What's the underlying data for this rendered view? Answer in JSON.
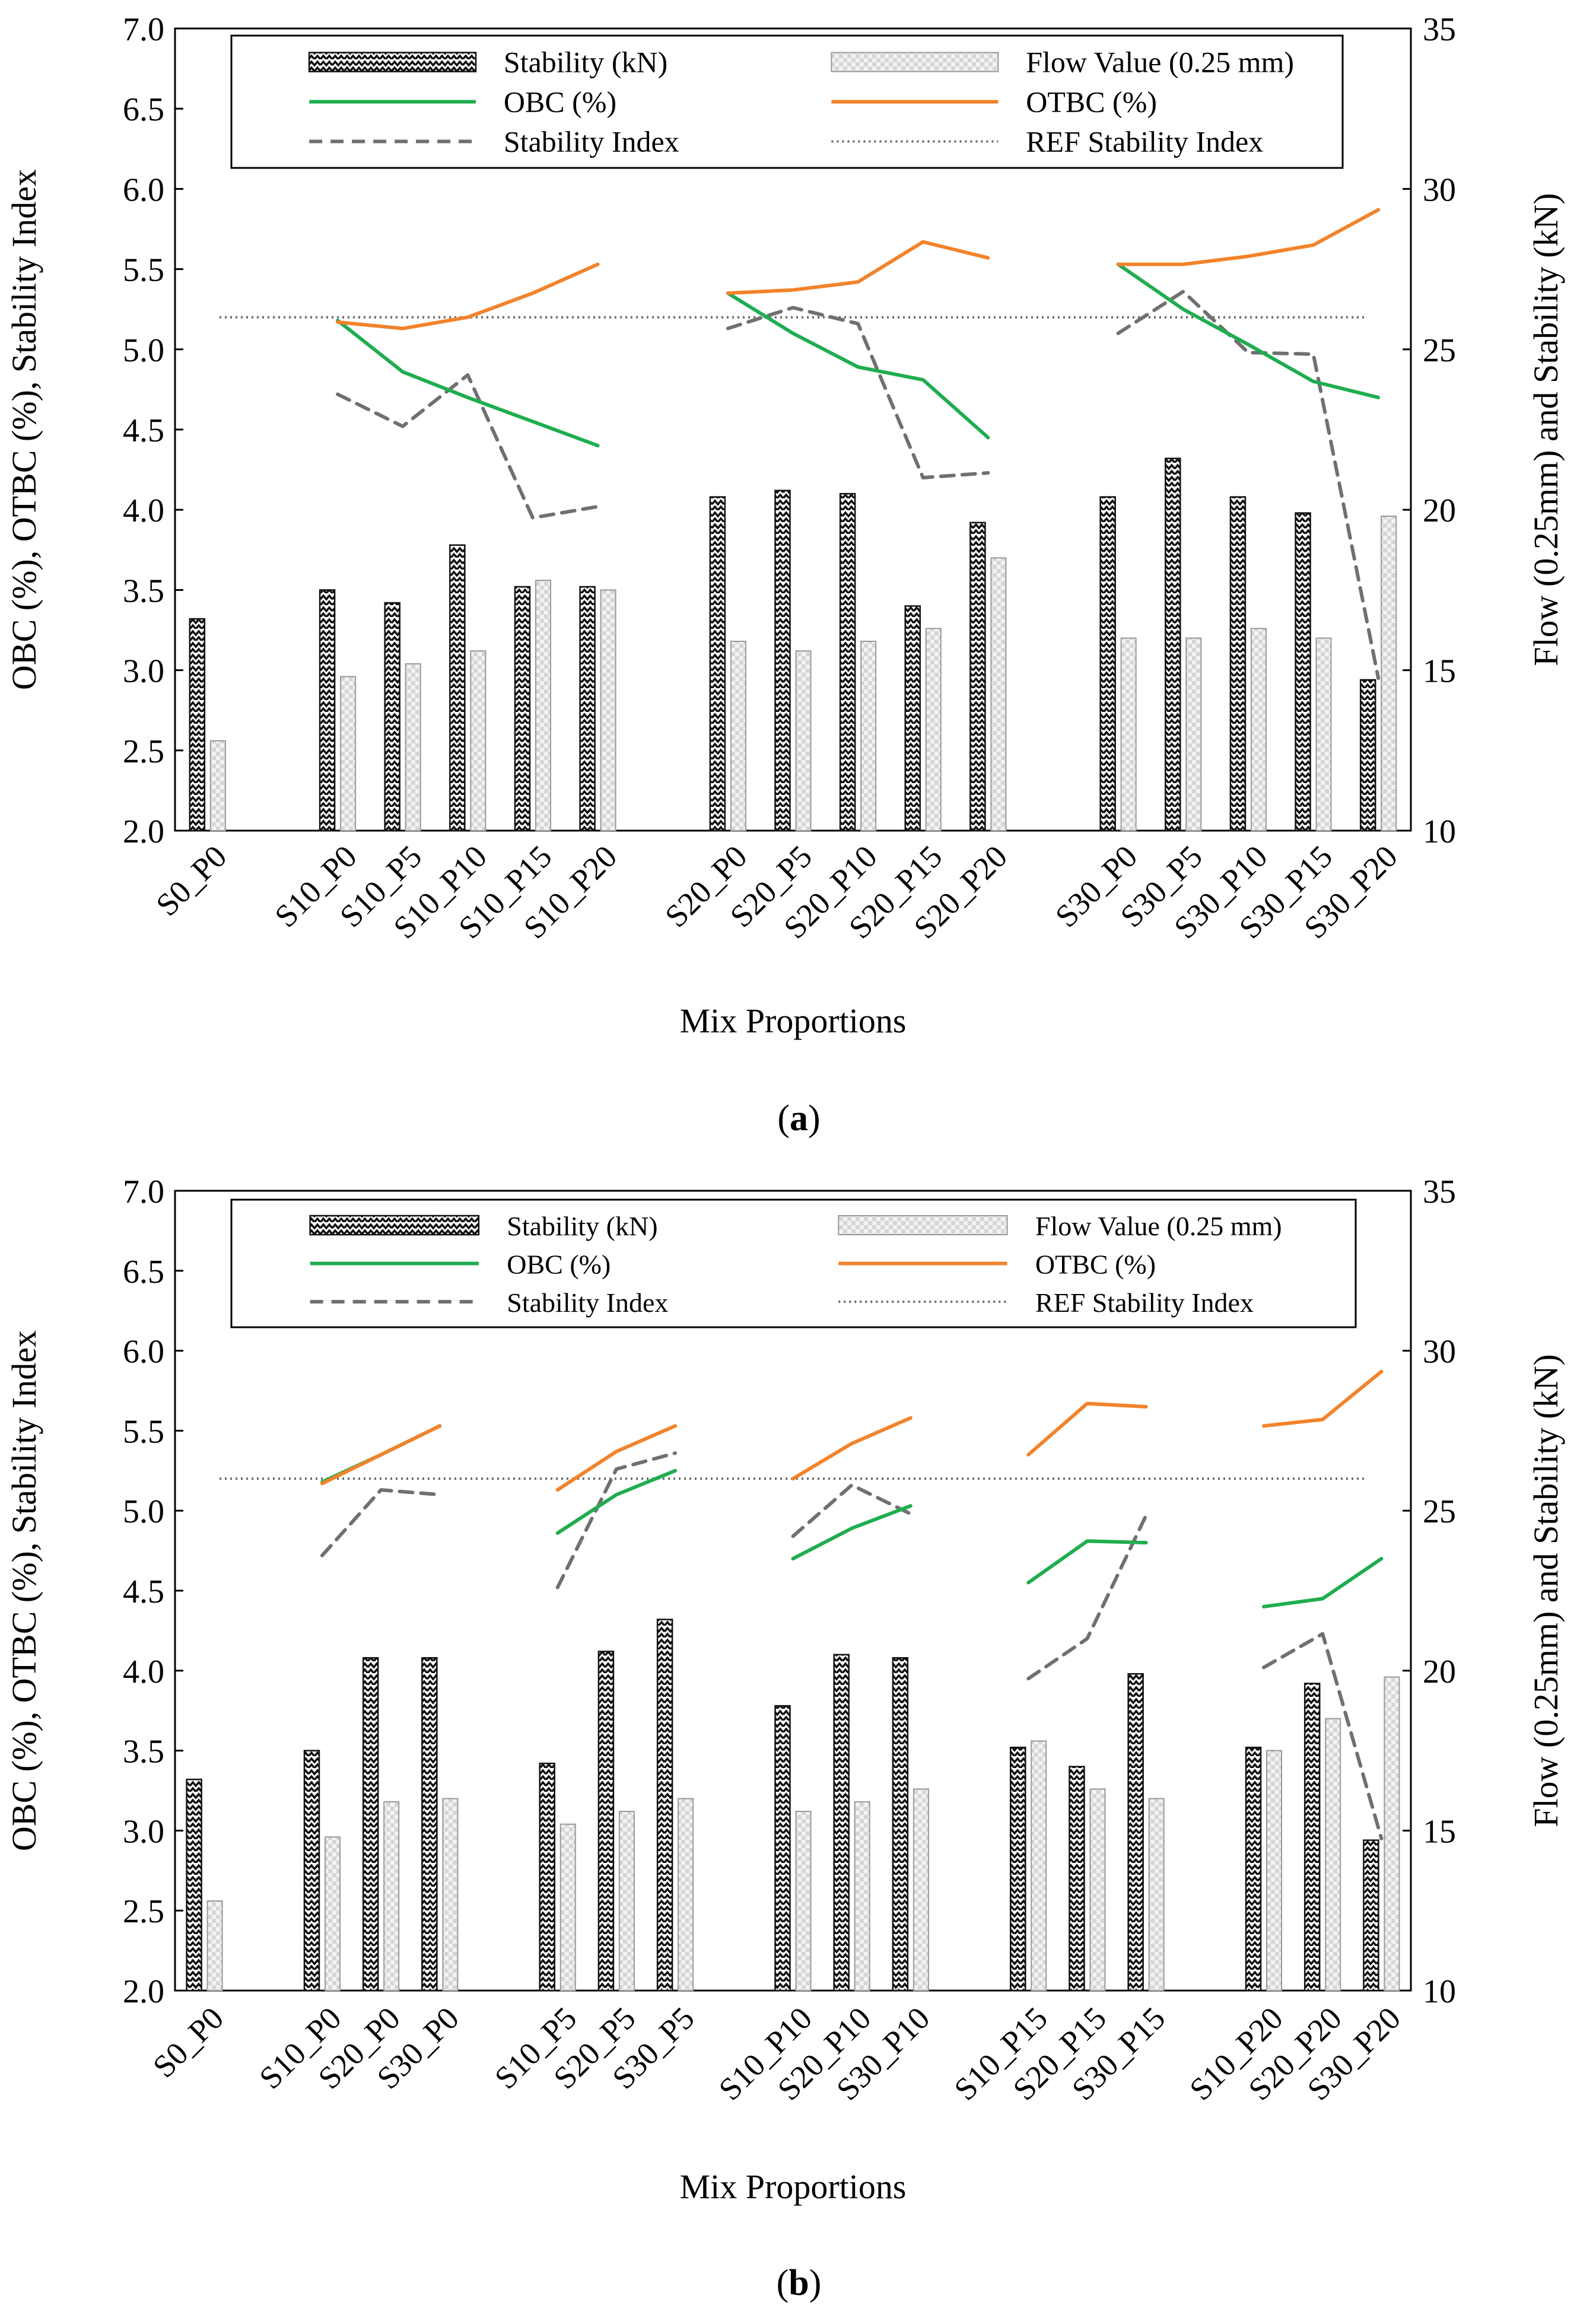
{
  "colors": {
    "obc": "#1fad4f",
    "otbc": "#f2832b",
    "stability_index": "#707070",
    "ref": "#6a6a6a",
    "stability_bar": "#1a1a1a",
    "flow_bar": "#c9c9c9"
  },
  "chart_data": [
    {
      "type": "bar",
      "panel": "(a)",
      "caption_letter": "a",
      "xlabel": "Mix Proportions",
      "ylabel_left": "OBC (%), OTBC (%), Stability Index",
      "ylabel_right": "Flow (0.25mm) and Stability (kN)",
      "ylim_left": [
        2.0,
        7.0
      ],
      "ylim_right": [
        10,
        35
      ],
      "left_ticks": [
        "2.0",
        "2.5",
        "3.0",
        "3.5",
        "4.0",
        "4.5",
        "5.0",
        "5.5",
        "6.0",
        "6.5",
        "7.0"
      ],
      "right_ticks": [
        "10",
        "15",
        "20",
        "25",
        "30",
        "35"
      ],
      "legend": {
        "stability": "Stability (kN)",
        "flow": "Flow Value (0.25 mm)",
        "obc": "OBC (%)",
        "otbc": "OTBC (%)",
        "si": "Stability Index",
        "ref": "REF Stability Index"
      },
      "ref_stability_index": 5.2,
      "categories": [
        "S0_P0",
        "S10_P0",
        "S10_P5",
        "S10_P10",
        "S10_P15",
        "S10_P20",
        "S20_P0",
        "S20_P5",
        "S20_P10",
        "S20_P15",
        "S20_P20",
        "S30_P0",
        "S30_P5",
        "S30_P10",
        "S30_P15",
        "S30_P20"
      ],
      "groups": [
        [
          0
        ],
        [
          1,
          2,
          3,
          4,
          5
        ],
        [
          6,
          7,
          8,
          9,
          10
        ],
        [
          11,
          12,
          13,
          14,
          15
        ]
      ],
      "stability": [
        16.6,
        17.5,
        17.1,
        18.9,
        17.6,
        17.6,
        20.4,
        20.6,
        20.5,
        17.0,
        19.6,
        20.4,
        21.6,
        20.4,
        19.9,
        14.7
      ],
      "flow": [
        12.8,
        14.8,
        15.2,
        15.6,
        17.8,
        17.5,
        15.9,
        15.6,
        15.9,
        16.3,
        18.5,
        16.0,
        16.0,
        16.3,
        16.0,
        19.8
      ],
      "obc": [
        null,
        5.18,
        4.86,
        4.7,
        4.55,
        4.4,
        5.35,
        5.1,
        4.89,
        4.81,
        4.45,
        5.53,
        5.25,
        5.03,
        4.8,
        4.7
      ],
      "otbc": [
        null,
        5.17,
        5.13,
        5.2,
        5.35,
        5.53,
        5.35,
        5.37,
        5.42,
        5.67,
        5.57,
        5.53,
        5.53,
        5.58,
        5.65,
        5.87
      ],
      "stability_index": [
        null,
        4.72,
        4.52,
        4.84,
        3.95,
        4.02,
        5.13,
        5.26,
        5.16,
        4.2,
        4.23,
        5.1,
        5.36,
        4.98,
        4.97,
        2.95
      ]
    },
    {
      "type": "bar",
      "panel": "(b)",
      "caption_letter": "b",
      "xlabel": "Mix Proportions",
      "ylabel_left": "OBC (%), OTBC (%), Stability Index",
      "ylabel_right": "Flow (0.25mm) and Stability (kN)",
      "ylim_left": [
        2.0,
        7.0
      ],
      "ylim_right": [
        10,
        35
      ],
      "left_ticks": [
        "2.0",
        "2.5",
        "3.0",
        "3.5",
        "4.0",
        "4.5",
        "5.0",
        "5.5",
        "6.0",
        "6.5",
        "7.0"
      ],
      "right_ticks": [
        "10",
        "15",
        "20",
        "25",
        "30",
        "35"
      ],
      "legend": {
        "stability": "Stability (kN)",
        "flow": "Flow Value (0.25 mm)",
        "obc": "OBC (%)",
        "otbc": "OTBC (%)",
        "si": "Stability Index",
        "ref": "REF Stability Index"
      },
      "ref_stability_index": 5.2,
      "categories": [
        "S0_P0",
        "S10_P0",
        "S20_P0",
        "S30_P0",
        "S10_P5",
        "S20_P5",
        "S30_P5",
        "S10_P10",
        "S20_P10",
        "S30_P10",
        "S10_P15",
        "S20_P15",
        "S30_P15",
        "S10_P20",
        "S20_P20",
        "S30_P20"
      ],
      "groups": [
        [
          0
        ],
        [
          1,
          2,
          3
        ],
        [
          4,
          5,
          6
        ],
        [
          7,
          8,
          9
        ],
        [
          10,
          11,
          12
        ],
        [
          13,
          14,
          15
        ]
      ],
      "stability": [
        16.6,
        17.5,
        20.4,
        20.4,
        17.1,
        20.6,
        21.6,
        18.9,
        20.5,
        20.4,
        17.6,
        17.0,
        19.9,
        17.6,
        19.6,
        14.7
      ],
      "flow": [
        12.8,
        14.8,
        15.9,
        16.0,
        15.2,
        15.6,
        16.0,
        15.6,
        15.9,
        16.3,
        17.8,
        16.3,
        16.0,
        17.5,
        18.5,
        19.8
      ],
      "obc": [
        null,
        5.18,
        5.35,
        5.53,
        4.86,
        5.1,
        5.25,
        4.7,
        4.89,
        5.03,
        4.55,
        4.81,
        4.8,
        4.4,
        4.45,
        4.7
      ],
      "otbc": [
        null,
        5.17,
        5.35,
        5.53,
        5.13,
        5.37,
        5.53,
        5.2,
        5.42,
        5.58,
        5.35,
        5.67,
        5.65,
        5.53,
        5.57,
        5.87
      ],
      "stability_index": [
        null,
        4.72,
        5.13,
        5.1,
        4.52,
        5.26,
        5.36,
        4.84,
        5.16,
        4.98,
        3.95,
        4.2,
        4.97,
        4.02,
        4.23,
        2.95
      ]
    }
  ]
}
